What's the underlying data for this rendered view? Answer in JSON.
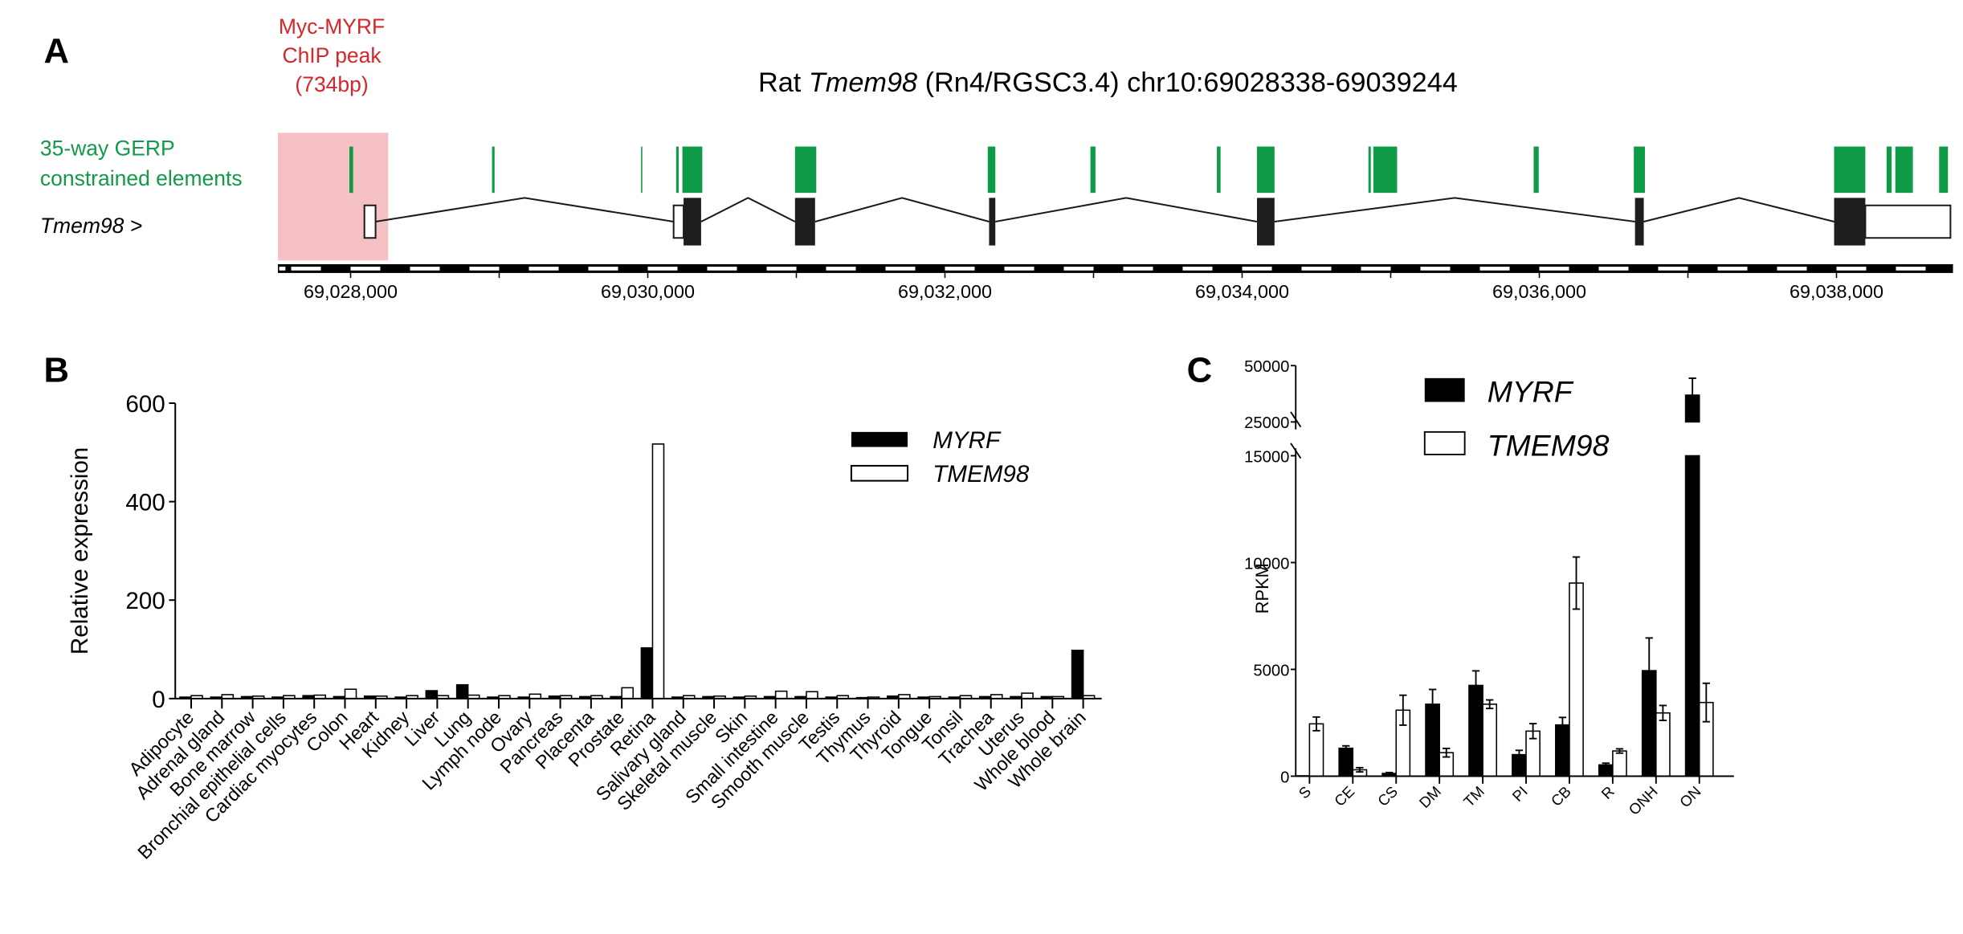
{
  "panel_labels": {
    "a": "A",
    "b": "B",
    "c": "C"
  },
  "colors": {
    "chip_peak": "#f6c1c4",
    "gerp": "#0f9a47",
    "chip_text": "#d7262b",
    "gerp_text": "#129a48",
    "bar_dark": "#000000",
    "bar_light": "#ffffff"
  },
  "chart_data": [
    {
      "type": "genome_track",
      "title": {
        "prefix": "Rat ",
        "gene": "Tmem98",
        "suffix": " (Rn4/RGSC3.4) chr10:69028338-69039244"
      },
      "chip_label": [
        "Myc-MYRF",
        "ChIP peak",
        "(734bp)"
      ],
      "gerp_label": [
        "35-way GERP",
        "constrained elements"
      ],
      "gene_label": "Tmem98 >",
      "xlim": [
        69027511,
        69038784
      ],
      "x_ticks": [
        69028000,
        69029000,
        69030000,
        69031000,
        69032000,
        69033000,
        69034000,
        69035000,
        69036000,
        69037000,
        69038000
      ],
      "x_tick_labels": [
        "69,028,000",
        "69,030,000",
        "69,032,000",
        "69,034,000",
        "69,036,000",
        "69,038,000"
      ],
      "x_tick_label_values": [
        69028000,
        69030000,
        69032000,
        69034000,
        69036000,
        69038000
      ],
      "chip_peak": [
        69027511,
        69028253
      ],
      "gerp_elements": [
        [
          69027992,
          69028017
        ],
        [
          69028952,
          69028969
        ],
        [
          69029955,
          69029963
        ],
        [
          69030191,
          69030208
        ],
        [
          69030233,
          69030367
        ],
        [
          69030991,
          69031134
        ],
        [
          69032288,
          69032339
        ],
        [
          69032979,
          69033013
        ],
        [
          69033830,
          69033855
        ],
        [
          69034100,
          69034218
        ],
        [
          69034850,
          69034866
        ],
        [
          69034883,
          69035043
        ],
        [
          69035962,
          69035996
        ],
        [
          69036636,
          69036711
        ],
        [
          69037984,
          69038194
        ],
        [
          69038337,
          69038371
        ],
        [
          69038396,
          69038514
        ],
        [
          69038691,
          69038750
        ]
      ],
      "exons": [
        {
          "utr": [
            69028093,
            69028168
          ]
        },
        {
          "utr": [
            69030174,
            69030241
          ],
          "cds": [
            69030241,
            69030359
          ]
        },
        {
          "cds": [
            69030991,
            69031126
          ]
        },
        {
          "cds": [
            69032297,
            69032339
          ]
        },
        {
          "cds": [
            69034100,
            69034218
          ]
        },
        {
          "cds": [
            69036644,
            69036703
          ]
        },
        {
          "cds": [
            69037984,
            69038194
          ],
          "utr": [
            69038194,
            69038767
          ]
        }
      ]
    },
    {
      "type": "bar",
      "ylabel": "Relative expression",
      "ylim": [
        0,
        600
      ],
      "y_ticks": [
        0,
        200,
        400,
        600
      ],
      "categories": [
        "Adipocyte",
        "Adrenal gland",
        "Bone marrow",
        "Bronchial epithelial cells",
        "Cardiac myocytes",
        "Colon",
        "Heart",
        "Kidney",
        "Liver",
        "Lung",
        "Lymph node",
        "Ovary",
        "Pancreas",
        "Placenta",
        "Prostate",
        "Retina",
        "Salivary gland",
        "Skeletal muscle",
        "Skin",
        "Small intestine",
        "Smooth muscle",
        "Testis",
        "Thymus",
        "Thyroid",
        "Tongue",
        "Tonsil",
        "Trachea",
        "Uterus",
        "Whole blood",
        "Whole brain"
      ],
      "series": [
        {
          "name": "MYRF",
          "fill": "dark",
          "values": [
            3,
            3,
            4,
            3,
            6,
            4,
            5,
            3,
            16,
            28,
            3,
            3,
            5,
            4,
            4,
            103,
            3,
            4,
            3,
            4,
            4,
            3,
            2,
            5,
            3,
            3,
            4,
            4,
            4,
            98
          ]
        },
        {
          "name": "TMEM98",
          "fill": "light",
          "values": [
            6,
            8,
            5,
            6,
            7,
            19,
            5,
            6,
            6,
            7,
            6,
            9,
            6,
            6,
            22,
            517,
            6,
            5,
            5,
            15,
            14,
            6,
            3,
            8,
            4,
            6,
            8,
            11,
            4,
            6
          ]
        }
      ],
      "legend": "top-right"
    },
    {
      "type": "bar",
      "ylabel": "RPKM",
      "y_axis_break": [
        15000,
        25000
      ],
      "ylim": [
        0,
        50000
      ],
      "y_ticks": [
        0,
        5000,
        10000,
        15000,
        25000,
        50000
      ],
      "categories": [
        "S",
        "CE",
        "CS",
        "DM",
        "TM",
        "PI",
        "CB",
        "R",
        "ONH",
        "ON"
      ],
      "series": [
        {
          "name": "MYRF",
          "fill": "dark",
          "values": [
            20,
            1310,
            130,
            3370,
            4250,
            1010,
            2400,
            530,
            4940,
            36900
          ],
          "errors": [
            0,
            110,
            40,
            690,
            680,
            200,
            350,
            80,
            1530,
            7500
          ]
        },
        {
          "name": "TMEM98",
          "fill": "light",
          "values": [
            2450,
            300,
            3090,
            1100,
            3370,
            2110,
            9040,
            1180,
            2960,
            3450
          ],
          "errors": [
            320,
            100,
            700,
            200,
            200,
            350,
            1220,
            100,
            350,
            900
          ]
        }
      ],
      "legend": "top-left"
    }
  ]
}
